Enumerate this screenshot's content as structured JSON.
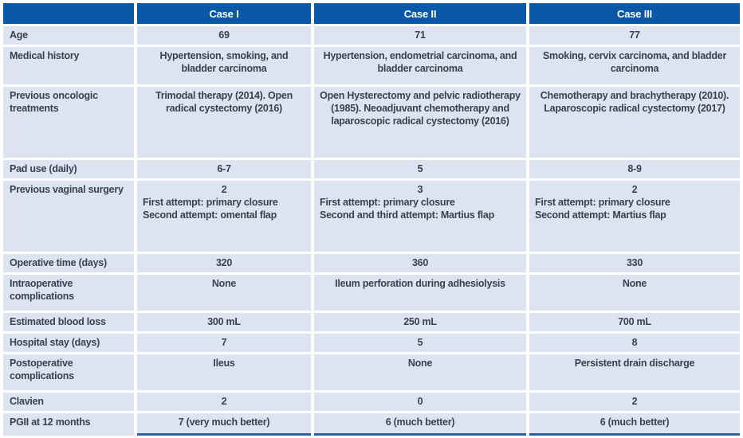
{
  "accent_colors": {
    "header_blue": "#0a58a7",
    "row_background": "#dde3f1",
    "text_color": "#3a414f",
    "footer_rule_blue": "#2065b1"
  },
  "table": {
    "columns": [
      "",
      "Case I",
      "Case II",
      "Case III"
    ],
    "rows": [
      {
        "label": "Age",
        "values": [
          "69",
          "71",
          "77"
        ]
      },
      {
        "label": "Medical history",
        "values": [
          "Hypertension, smoking, and bladder carcinoma",
          "Hypertension, endometrial carcinoma, and bladder carcinoma",
          "Smoking, cervix carcinoma, and bladder carcinoma"
        ]
      },
      {
        "label": "Previous oncologic treatments",
        "values": [
          "Trimodal therapy (2014). Open radical cystectomy (2016)",
          "Open Hysterectomy and pelvic radiotherapy (1985). Neoadjuvant chemotherapy and laparoscopic radical cystectomy (2016)",
          "Chemotherapy and brachytherapy (2010). Laparoscopic radical cystectomy (2017)"
        ]
      },
      {
        "label": "Pad use (daily)",
        "values": [
          "6-7",
          "5",
          "8-9"
        ]
      },
      {
        "label": "Previous vaginal surgery",
        "values": [
          {
            "count": "2",
            "details": [
              "First attempt: primary closure",
              "Second attempt: omental flap"
            ]
          },
          {
            "count": "3",
            "details": [
              "First attempt: primary closure",
              "Second and third attempt: Martius flap"
            ]
          },
          {
            "count": "2",
            "details": [
              "First attempt: primary closure",
              "Second attempt: Martius flap"
            ]
          }
        ]
      },
      {
        "label": "Operative time (days)",
        "values": [
          "320",
          "360",
          "330"
        ]
      },
      {
        "label": "Intraoperative complications",
        "values": [
          "None",
          "Ileum perforation during adhesiolysis",
          "None"
        ]
      },
      {
        "label": "Estimated blood loss",
        "values": [
          "300 mL",
          "250 mL",
          "700 mL"
        ]
      },
      {
        "label": "Hospital stay (days)",
        "values": [
          "7",
          "5",
          "8"
        ]
      },
      {
        "label": "Postoperative complications",
        "values": [
          "Ileus",
          "None",
          "Persistent drain discharge"
        ]
      },
      {
        "label": "Clavien",
        "values": [
          "2",
          "0",
          "2"
        ]
      },
      {
        "label": "PGII at 12 months",
        "values": [
          "7 (very much better)",
          "6 (much better)",
          "6 (much better)"
        ]
      }
    ]
  }
}
